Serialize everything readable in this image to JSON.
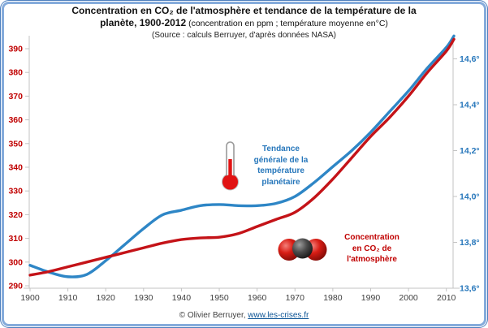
{
  "frame": {
    "border_color": "#85abdb"
  },
  "title": {
    "line1": "Concentration en CO₂ de l'atmosphère et tendance de la température de la",
    "line2_bold": "planète, 1900-2012",
    "line2_rest": " (concentration en ppm ; température moyenne en°C)",
    "line3": "(Source : calculs Berruyer, d'après données NASA)"
  },
  "annotations": {
    "temperature": {
      "text": "Tendance\ngénérale de la\ntempérature\nplanétaire",
      "color": "#2777bb",
      "icon": "thermometer-icon"
    },
    "co2": {
      "text": "Concentration\nen CO₂ de\nl'atmosphère",
      "color": "#c00000",
      "icon": "co2-molecule-icon"
    }
  },
  "footer": {
    "copyright": "© Olivier Berruyer, ",
    "link_text": "www.les-crises.fr"
  },
  "chart_data": {
    "type": "line",
    "title": "Concentration en CO₂ de l'atmosphère et tendance de la température de la planète, 1900-2012",
    "subtitle": "(concentration en ppm ; température moyenne en°C)",
    "source": "(Source : calculs Berruyer, d'après données NASA)",
    "grid": false,
    "x_axis": {
      "range": [
        1900,
        2012
      ],
      "ticks": [
        {
          "v": 1900,
          "label": "1900"
        },
        {
          "v": 1910,
          "label": "1910"
        },
        {
          "v": 1920,
          "label": "1920"
        },
        {
          "v": 1930,
          "label": "1930"
        },
        {
          "v": 1940,
          "label": "1940"
        },
        {
          "v": 1950,
          "label": "1950"
        },
        {
          "v": 1960,
          "label": "1960"
        },
        {
          "v": 1970,
          "label": "1970"
        },
        {
          "v": 1980,
          "label": "1980"
        },
        {
          "v": 1990,
          "label": "1990"
        },
        {
          "v": 2000,
          "label": "2000"
        },
        {
          "v": 2010,
          "label": "2010"
        }
      ],
      "label_color": "#3f3f3f"
    },
    "left_axis": {
      "unit": "ppm",
      "range": [
        290,
        390
      ],
      "ticks": [
        {
          "v": 290,
          "label": "290"
        },
        {
          "v": 300,
          "label": "300"
        },
        {
          "v": 310,
          "label": "310"
        },
        {
          "v": 320,
          "label": "320"
        },
        {
          "v": 330,
          "label": "330"
        },
        {
          "v": 340,
          "label": "340"
        },
        {
          "v": 350,
          "label": "350"
        },
        {
          "v": 360,
          "label": "360"
        },
        {
          "v": 370,
          "label": "370"
        },
        {
          "v": 380,
          "label": "380"
        },
        {
          "v": 390,
          "label": "390"
        }
      ],
      "label_color": "#c00000"
    },
    "right_axis": {
      "unit": "°C",
      "range": [
        13.6,
        14.6
      ],
      "ticks": [
        {
          "v": 13.6,
          "label": "13,6°"
        },
        {
          "v": 13.8,
          "label": "13,8°"
        },
        {
          "v": 14.0,
          "label": "14,0°"
        },
        {
          "v": 14.2,
          "label": "14,2°"
        },
        {
          "v": 14.4,
          "label": "14,4°"
        },
        {
          "v": 14.6,
          "label": "14,6°"
        }
      ],
      "label_color": "#2777bb"
    },
    "series": [
      {
        "name": "Tendance générale de la température planétaire",
        "axis": "right",
        "color": "#2e86c6",
        "points": [
          [
            1900,
            13.7
          ],
          [
            1905,
            13.67
          ],
          [
            1910,
            13.65
          ],
          [
            1915,
            13.66
          ],
          [
            1920,
            13.72
          ],
          [
            1925,
            13.79
          ],
          [
            1930,
            13.86
          ],
          [
            1935,
            13.92
          ],
          [
            1940,
            13.94
          ],
          [
            1945,
            13.96
          ],
          [
            1950,
            13.965
          ],
          [
            1955,
            13.96
          ],
          [
            1960,
            13.96
          ],
          [
            1965,
            13.97
          ],
          [
            1970,
            14.0
          ],
          [
            1975,
            14.06
          ],
          [
            1980,
            14.13
          ],
          [
            1985,
            14.2
          ],
          [
            1990,
            14.28
          ],
          [
            1995,
            14.37
          ],
          [
            2000,
            14.46
          ],
          [
            2005,
            14.56
          ],
          [
            2010,
            14.65
          ],
          [
            2012,
            14.7
          ]
        ]
      },
      {
        "name": "Concentration en CO₂ de l'atmosphère",
        "axis": "left",
        "color": "#c41318",
        "points": [
          [
            1900,
            294.5
          ],
          [
            1905,
            296
          ],
          [
            1910,
            298
          ],
          [
            1915,
            300
          ],
          [
            1920,
            302
          ],
          [
            1925,
            304
          ],
          [
            1930,
            306
          ],
          [
            1935,
            308
          ],
          [
            1940,
            309.5
          ],
          [
            1945,
            310.2
          ],
          [
            1950,
            310.5
          ],
          [
            1955,
            312
          ],
          [
            1960,
            315
          ],
          [
            1965,
            318
          ],
          [
            1970,
            321
          ],
          [
            1975,
            327
          ],
          [
            1980,
            335
          ],
          [
            1985,
            344
          ],
          [
            1990,
            353
          ],
          [
            1995,
            361
          ],
          [
            2000,
            370
          ],
          [
            2005,
            380
          ],
          [
            2010,
            389
          ],
          [
            2012,
            394
          ]
        ]
      }
    ]
  }
}
